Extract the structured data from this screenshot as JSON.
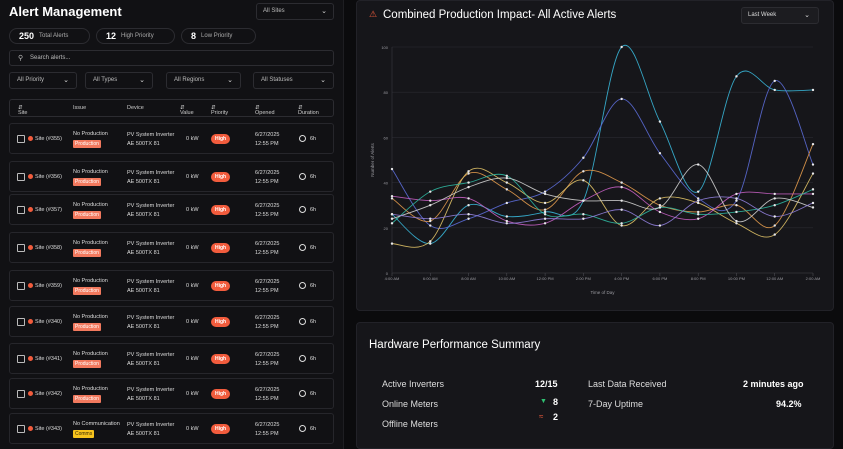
{
  "left": {
    "title": "Alert Management",
    "site_filter": "All Sites",
    "stats": [
      {
        "num": "250",
        "label": "Total Alerts"
      },
      {
        "num": "12",
        "label": "High Priority"
      },
      {
        "num": "8",
        "label": "Low Priority"
      }
    ],
    "search_placeholder": "Search alerts...",
    "filters": [
      "All Priority",
      "All Types",
      "All Regions",
      "All Statuses"
    ],
    "columns": {
      "site": "Site",
      "issue": "Issue",
      "device": "Device",
      "value": "Value",
      "priority": "Priority",
      "opened": "Opened",
      "duration": "Duration"
    },
    "rows": [
      {
        "site": "Site (#355)",
        "issue": "No Production",
        "tag": "Production",
        "dev1": "PV System Inverter",
        "dev2": "AE 500TX 81",
        "val": "0 kW",
        "prio": "High",
        "d1": "6/27/2025",
        "d2": "12:55 PM",
        "dur": "6h"
      },
      {
        "site": "Site (#356)",
        "issue": "No Production",
        "tag": "Production",
        "dev1": "PV System Inverter",
        "dev2": "AE 500TX 81",
        "val": "0 kW",
        "prio": "High",
        "d1": "6/27/2025",
        "d2": "12:55 PM",
        "dur": "6h"
      },
      {
        "site": "Site (#357)",
        "issue": "No Production",
        "tag": "Production",
        "dev1": "PV System Inverter",
        "dev2": "AE 500TX 81",
        "val": "0 kW",
        "prio": "High",
        "d1": "6/27/2025",
        "d2": "12:55 PM",
        "dur": "6h"
      },
      {
        "site": "Site (#358)",
        "issue": "No Production",
        "tag": "Production",
        "dev1": "PV System Inverter",
        "dev2": "AE 500TX 81",
        "val": "0 kW",
        "prio": "High",
        "d1": "6/27/2025",
        "d2": "12:55 PM",
        "dur": "6h"
      },
      {
        "site": "Site (#359)",
        "issue": "No Production",
        "tag": "Production",
        "dev1": "PV System Inverter",
        "dev2": "AE 500TX 81",
        "val": "0 kW",
        "prio": "High",
        "d1": "6/27/2025",
        "d2": "12:55 PM",
        "dur": "6h"
      },
      {
        "site": "Site (#340)",
        "issue": "No Production",
        "tag": "Production",
        "dev1": "PV System Inverter",
        "dev2": "AE 500TX 81",
        "val": "0 kW",
        "prio": "High",
        "d1": "6/27/2025",
        "d2": "12:55 PM",
        "dur": "6h"
      },
      {
        "site": "Site (#341)",
        "issue": "No Production",
        "tag": "Production",
        "dev1": "PV System Inverter",
        "dev2": "AE 500TX 81",
        "val": "0 kW",
        "prio": "High",
        "d1": "6/27/2025",
        "d2": "12:55 PM",
        "dur": "6h"
      },
      {
        "site": "Site (#342)",
        "issue": "No Production",
        "tag": "Production",
        "dev1": "PV System Inverter",
        "dev2": "AE 500TX 81",
        "val": "0 kW",
        "prio": "High",
        "d1": "6/27/2025",
        "d2": "12:55 PM",
        "dur": "6h"
      },
      {
        "site": "Site (#343)",
        "issue": "No Communication",
        "tag": "Comms",
        "tag_type": "warn",
        "dev1": "PV System Inverter",
        "dev2": "AE 500TX 81",
        "val": "0 kW",
        "prio": "High",
        "d1": "6/27/2025",
        "d2": "12:55 PM",
        "dur": "6h"
      }
    ]
  },
  "chart": {
    "title": "Combined Production Impact- All Active Alerts",
    "range": "Last Week"
  },
  "chart_data": {
    "type": "line",
    "x": [
      "4:00 AM",
      "6:00 AM",
      "8:00 AM",
      "10:00 AM",
      "12:00 PM",
      "2:00 PM",
      "4:00 PM",
      "6:00 PM",
      "8:00 PM",
      "10:00 PM",
      "12:00 AM",
      "2:00 AM"
    ],
    "xlabel": "Time of Day",
    "ylabel": "Number of Alerts",
    "ylim": [
      0,
      100
    ],
    "yticks": [
      0,
      20,
      40,
      60,
      80,
      100
    ],
    "grid": true,
    "series": [
      {
        "color": "#38b6d8",
        "values": [
          26,
          13,
          30,
          25,
          27,
          32,
          100,
          67,
          36,
          87,
          81,
          81
        ]
      },
      {
        "color": "#5b6bd6",
        "values": [
          46,
          21,
          24,
          31,
          36,
          51,
          77,
          53,
          33,
          32,
          85,
          48
        ]
      },
      {
        "color": "#e29a4c",
        "values": [
          33,
          23,
          44,
          37,
          28,
          45,
          40,
          30,
          27,
          30,
          21,
          57
        ]
      },
      {
        "color": "#e0c267",
        "values": [
          13,
          14,
          45,
          40,
          31,
          41,
          21,
          33,
          31,
          22,
          17,
          44
        ]
      },
      {
        "color": "#c45fc1",
        "values": [
          34,
          32,
          33,
          23,
          22,
          32,
          38,
          27,
          24,
          35,
          35,
          35
        ]
      },
      {
        "color": "#2fb6a0",
        "values": [
          22,
          36,
          40,
          43,
          26,
          26,
          22,
          29,
          26,
          27,
          30,
          37
        ]
      },
      {
        "color": "#d0d0d0",
        "values": [
          24,
          30,
          38,
          42,
          35,
          32,
          32,
          29,
          48,
          23,
          33,
          29
        ]
      },
      {
        "color": "#8f7ed9",
        "values": [
          26,
          24,
          26,
          22,
          24,
          24,
          28,
          21,
          32,
          33,
          25,
          31
        ]
      }
    ]
  },
  "hardware": {
    "title": "Hardware Performance Summary",
    "active_inverters_label": "Active Inverters",
    "active_inverters_value": "12/15",
    "online_meters_label": "Online Meters",
    "online_meters_value": "8",
    "offline_meters_label": "Offline Meters",
    "offline_meters_value": "2",
    "last_data_label": "Last Data Received",
    "last_data_value": "2 minutes ago",
    "uptime_label": "7-Day Uptime",
    "uptime_value": "94.2%"
  }
}
